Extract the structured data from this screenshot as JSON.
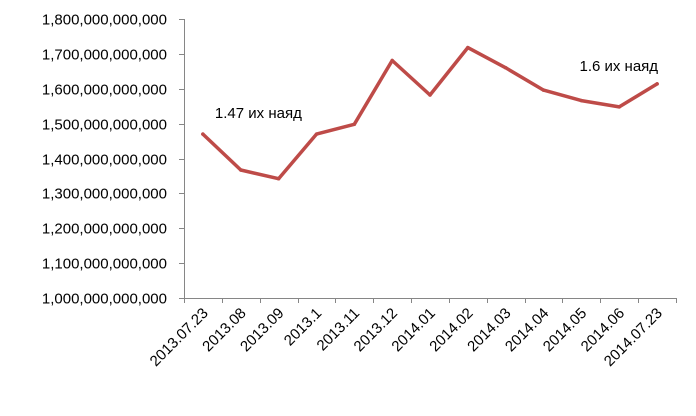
{
  "chart_data": {
    "type": "line",
    "title": "",
    "xlabel": "",
    "ylabel": "",
    "categories": [
      "2013.07.23",
      "2013.08",
      "2013.09",
      "2013.1",
      "2013.11",
      "2013.12",
      "2014.01",
      "2014.02",
      "2014.03",
      "2014.04",
      "2014.05",
      "2014.06",
      "2014.07.23"
    ],
    "series": [
      {
        "values": [
          1470000000000,
          1367000000000,
          1342000000000,
          1470000000000,
          1498000000000,
          1681000000000,
          1582000000000,
          1718000000000,
          1660000000000,
          1596000000000,
          1566000000000,
          1548000000000,
          1614000000000
        ],
        "color": "#be4b48"
      }
    ],
    "ylim": [
      1000000000000,
      1800000000000
    ],
    "yticks": [
      1000000000000,
      1100000000000,
      1200000000000,
      1300000000000,
      1400000000000,
      1500000000000,
      1600000000000,
      1700000000000,
      1800000000000
    ],
    "ytick_labels": [
      "1,000,000,000,000",
      "1,100,000,000,000",
      "1,200,000,000,000",
      "1,300,000,000,000",
      "1,400,000,000,000",
      "1,500,000,000,000",
      "1,600,000,000,000",
      "1,700,000,000,000",
      "1,800,000,000,000"
    ],
    "grid": false,
    "legend": "none",
    "annotations": [
      {
        "text": "1.47 их наяд",
        "category_index": 0,
        "value": 1470000000000
      },
      {
        "text": "1.6 их наяд",
        "category_index": 12,
        "value": 1614000000000
      }
    ]
  }
}
